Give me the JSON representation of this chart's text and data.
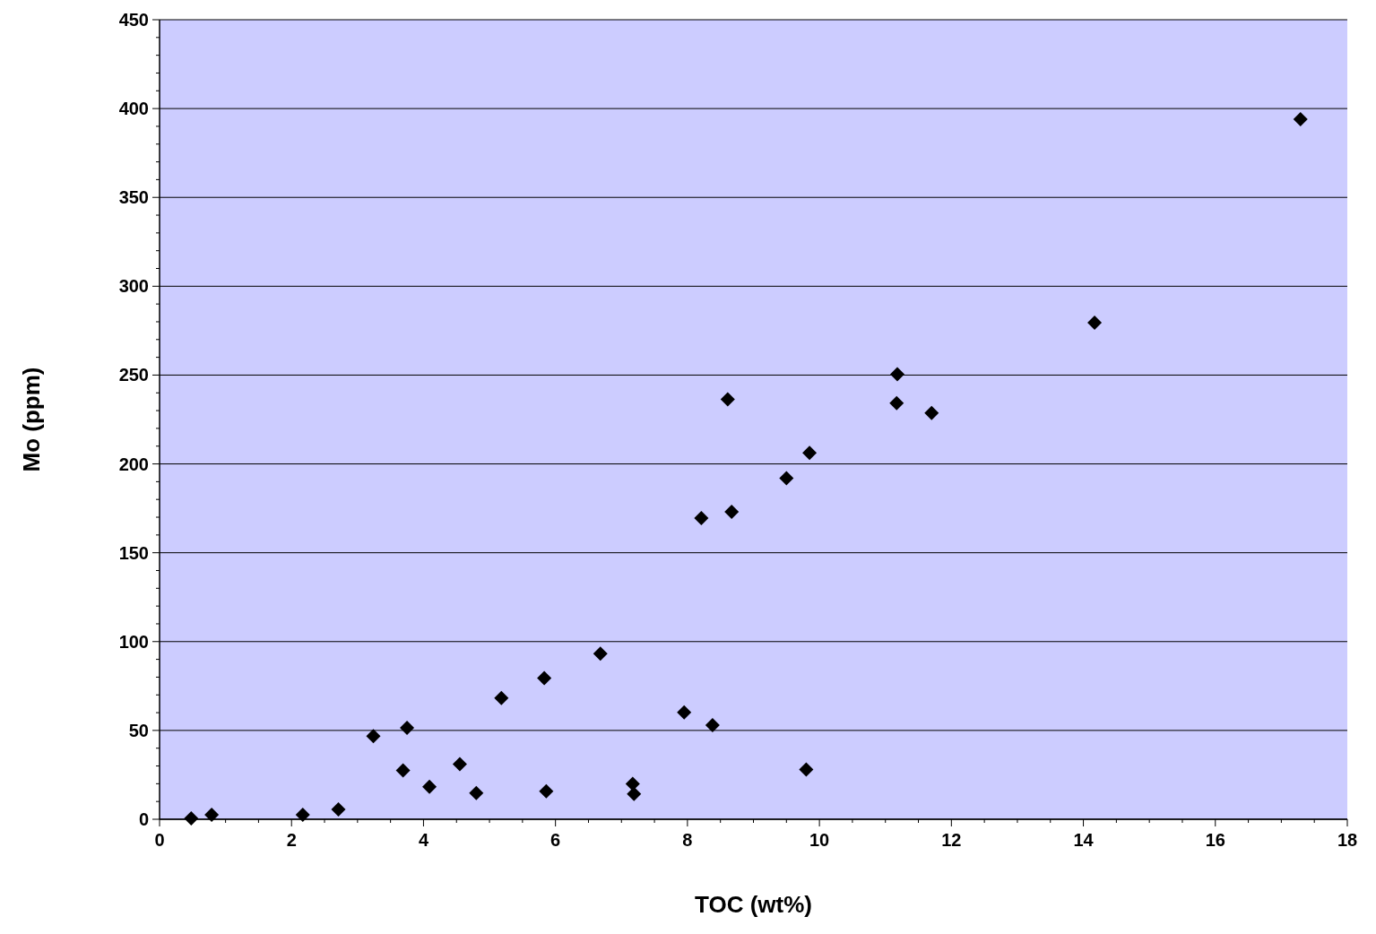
{
  "chart_data": {
    "type": "scatter",
    "xlabel": "TOC (wt%)",
    "ylabel": "Mo (ppm)",
    "marker": "diamond",
    "grid": "y",
    "xlim": [
      0,
      18
    ],
    "ylim": [
      0,
      450
    ],
    "xticks": [
      0,
      {
        "value": 0.5,
        "label": null
      },
      {
        "value": 1,
        "label": null
      },
      {
        "value": 1.5,
        "label": null
      },
      2,
      {
        "value": 2.5,
        "label": null
      },
      {
        "value": 3,
        "label": null
      },
      {
        "value": 3.5,
        "label": null
      },
      4,
      {
        "value": 4.5,
        "label": null
      },
      {
        "value": 5,
        "label": null
      },
      {
        "value": 5.5,
        "label": null
      },
      6,
      {
        "value": 6.5,
        "label": null
      },
      {
        "value": 7,
        "label": null
      },
      {
        "value": 7.5,
        "label": null
      },
      8,
      {
        "value": 8.5,
        "label": null
      },
      {
        "value": 9,
        "label": null
      },
      {
        "value": 9.5,
        "label": null
      },
      10,
      {
        "value": 10.5,
        "label": null
      },
      {
        "value": 11,
        "label": null
      },
      {
        "value": 11.5,
        "label": null
      },
      12,
      {
        "value": 12.5,
        "label": null
      },
      {
        "value": 13,
        "label": null
      },
      {
        "value": 13.5,
        "label": null
      },
      14,
      {
        "value": 14.5,
        "label": null
      },
      {
        "value": 15,
        "label": null
      },
      {
        "value": 15.5,
        "label": null
      },
      16,
      {
        "value": 16.5,
        "label": null
      },
      {
        "value": 17,
        "label": null
      },
      {
        "value": 17.5,
        "label": null
      },
      18
    ],
    "yticks": [
      0,
      {
        "value": 10,
        "label": null
      },
      {
        "value": 20,
        "label": null
      },
      {
        "value": 30,
        "label": null
      },
      {
        "value": 40,
        "label": null
      },
      50,
      {
        "value": 60,
        "label": null
      },
      {
        "value": 70,
        "label": null
      },
      {
        "value": 80,
        "label": null
      },
      {
        "value": 90,
        "label": null
      },
      100,
      {
        "value": 110,
        "label": null
      },
      {
        "value": 120,
        "label": null
      },
      {
        "value": 130,
        "label": null
      },
      {
        "value": 140,
        "label": null
      },
      150,
      {
        "value": 160,
        "label": null
      },
      {
        "value": 170,
        "label": null
      },
      {
        "value": 180,
        "label": null
      },
      {
        "value": 190,
        "label": null
      },
      200,
      {
        "value": 210,
        "label": null
      },
      {
        "value": 220,
        "label": null
      },
      {
        "value": 230,
        "label": null
      },
      {
        "value": 240,
        "label": null
      },
      250,
      {
        "value": 260,
        "label": null
      },
      {
        "value": 270,
        "label": null
      },
      {
        "value": 280,
        "label": null
      },
      {
        "value": 290,
        "label": null
      },
      300,
      {
        "value": 310,
        "label": null
      },
      {
        "value": 320,
        "label": null
      },
      {
        "value": 330,
        "label": null
      },
      {
        "value": 340,
        "label": null
      },
      350,
      {
        "value": 360,
        "label": null
      },
      {
        "value": 370,
        "label": null
      },
      {
        "value": 380,
        "label": null
      },
      {
        "value": 390,
        "label": null
      },
      400,
      {
        "value": 410,
        "label": null
      },
      {
        "value": 420,
        "label": null
      },
      {
        "value": 430,
        "label": null
      },
      {
        "value": 440,
        "label": null
      },
      450
    ],
    "series": [
      {
        "color": "#000000",
        "x": [
          0.48,
          0.79,
          2.17,
          2.71,
          3.24,
          3.69,
          3.75,
          4.09,
          4.55,
          4.8,
          5.18,
          5.83,
          5.86,
          6.68,
          7.17,
          7.19,
          7.95,
          8.21,
          8.38,
          8.61,
          8.67,
          9.5,
          9.8,
          9.85,
          11.17,
          11.18,
          11.7,
          14.17,
          17.29
        ],
        "values": [
          0.5,
          2.5,
          2.5,
          5.6,
          46.8,
          27.5,
          51.4,
          18.3,
          31,
          14.8,
          68.2,
          79.4,
          15.8,
          93.2,
          19.9,
          14.3,
          60.1,
          169.5,
          53,
          236.3,
          173.1,
          192,
          28,
          206.2,
          234.2,
          250.5,
          228.6,
          279.5,
          394
        ]
      }
    ]
  }
}
